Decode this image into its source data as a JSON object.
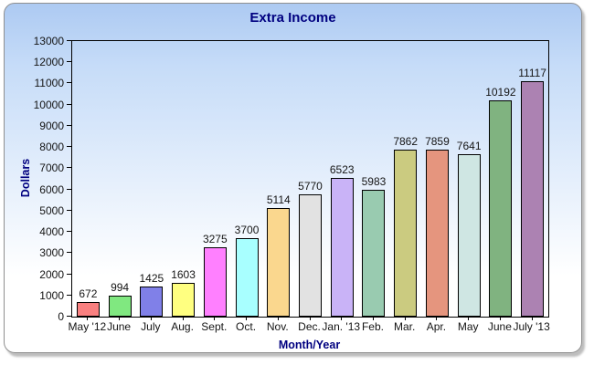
{
  "chart_data": {
    "type": "bar",
    "title": "Extra Income",
    "xlabel": "Month/Year",
    "ylabel": "Dollars",
    "ylim": [
      0,
      13000
    ],
    "ytick_step": 1000,
    "grid": false,
    "legend": "none",
    "value_labels_shown": true,
    "categories": [
      "May '12",
      "June",
      "July",
      "Aug.",
      "Sept.",
      "Oct.",
      "Nov.",
      "Dec.",
      "Jan. '13",
      "Feb.",
      "Mar.",
      "Apr.",
      "May",
      "June",
      "July '13"
    ],
    "values": [
      672,
      994,
      1425,
      1603,
      3275,
      3700,
      5114,
      5770,
      6523,
      5983,
      7862,
      7859,
      7641,
      10192,
      11117
    ],
    "bar_colors": [
      "#f98080",
      "#80e880",
      "#8080e8",
      "#ffff80",
      "#ff80ff",
      "#a8ffff",
      "#fad78e",
      "#e2e2e2",
      "#c9b3f7",
      "#99cbb0",
      "#cbcb80",
      "#e5957e",
      "#cfe6e3",
      "#80b380",
      "#ac82b2"
    ]
  },
  "colors": {
    "title_text": "#000080",
    "axis_title_text": "#000080",
    "tick_text": "#141414",
    "plot_border": "#000000",
    "card_border": "#8f8f8f",
    "card_bg_top": "#adcaf2",
    "card_bg_bottom": "#ffffff"
  }
}
